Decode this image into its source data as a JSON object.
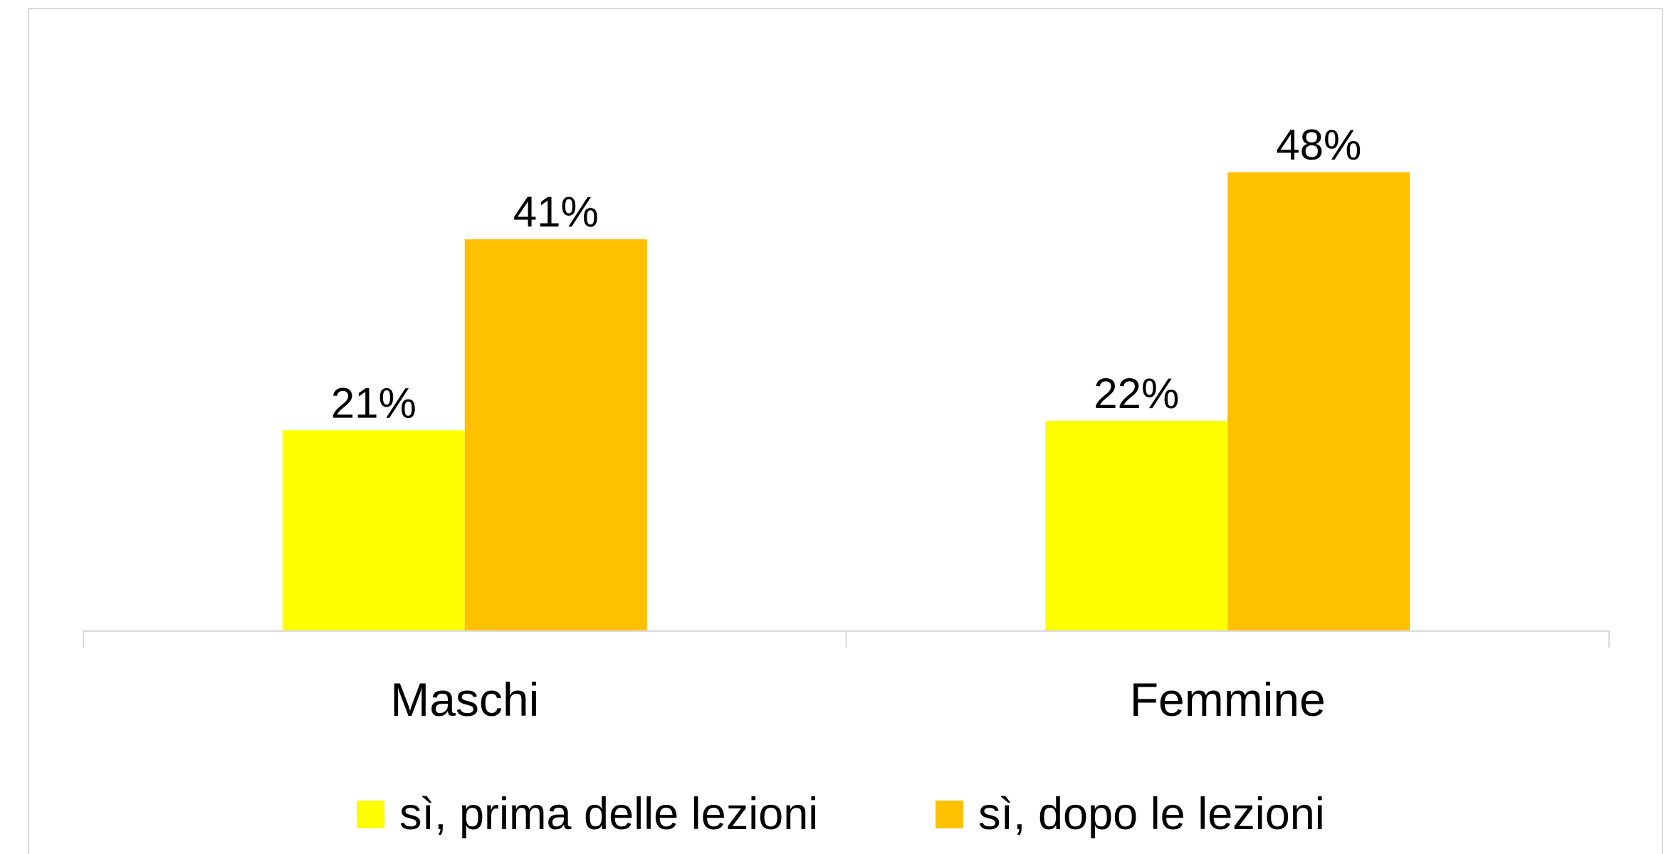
{
  "chart_data": {
    "type": "bar",
    "categories": [
      "Maschi",
      "Femmine"
    ],
    "series": [
      {
        "name": "sì, prima delle lezioni",
        "color": "#FFFF00",
        "values": [
          21,
          22
        ],
        "value_labels": [
          "21%",
          "22%"
        ]
      },
      {
        "name": "sì, dopo le lezioni",
        "color": "#FFC000",
        "values": [
          41,
          48
        ],
        "value_labels": [
          "41%",
          "48%"
        ]
      }
    ],
    "ylim": [
      0,
      60
    ]
  }
}
